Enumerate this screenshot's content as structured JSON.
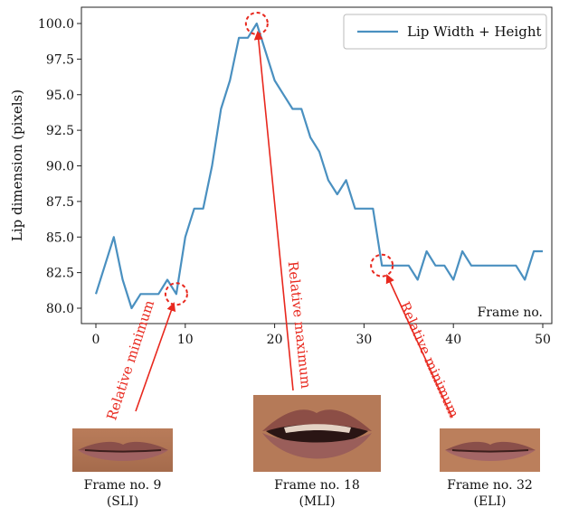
{
  "chart_data": {
    "type": "line",
    "xlabel": "Frame no.",
    "ylabel": "Lip dimension (pixels)",
    "xlim": [
      0,
      50
    ],
    "ylim": [
      80,
      100
    ],
    "xticks": [
      "0",
      "10",
      "20",
      "30",
      "40",
      "50"
    ],
    "yticks": [
      "80.0",
      "82.5",
      "85.0",
      "87.5",
      "90.0",
      "92.5",
      "95.0",
      "97.5",
      "100.0"
    ],
    "legend_position": "top-right",
    "grid": false,
    "series": [
      {
        "name": "Lip Width + Height",
        "color": "#4a90c0",
        "x": [
          0,
          1,
          2,
          3,
          4,
          5,
          6,
          7,
          8,
          9,
          10,
          11,
          12,
          13,
          14,
          15,
          16,
          17,
          18,
          19,
          20,
          21,
          22,
          23,
          24,
          25,
          26,
          27,
          28,
          29,
          30,
          31,
          32,
          33,
          34,
          35,
          36,
          37,
          38,
          39,
          40,
          41,
          42,
          43,
          44,
          45,
          46,
          47,
          48,
          49,
          50
        ],
        "y": [
          81,
          83,
          85,
          82,
          80,
          81,
          81,
          81,
          82,
          81,
          85,
          87,
          87,
          90,
          94,
          96,
          99,
          99,
          100,
          98,
          96,
          95,
          94,
          94,
          92,
          91,
          89,
          88,
          89,
          87,
          87,
          87,
          83,
          83,
          83,
          83,
          82,
          84,
          83,
          83,
          82,
          84,
          83,
          83,
          83,
          83,
          83,
          83,
          82,
          84,
          84
        ]
      }
    ],
    "annotations": [
      {
        "text": "Relative minimum",
        "x": 9,
        "y": 81,
        "color": "#e8281e"
      },
      {
        "text": "Relative maximum",
        "x": 18,
        "y": 100,
        "color": "#e8281e"
      },
      {
        "text": "Relative minimum",
        "x": 32,
        "y": 83,
        "color": "#e8281e"
      }
    ]
  },
  "frames": [
    {
      "line1": "Frame no. 9",
      "line2": "(SLI)"
    },
    {
      "line1": "Frame no. 18",
      "line2": "(MLI)"
    },
    {
      "line1": "Frame no. 32",
      "line2": "(ELI)"
    }
  ]
}
